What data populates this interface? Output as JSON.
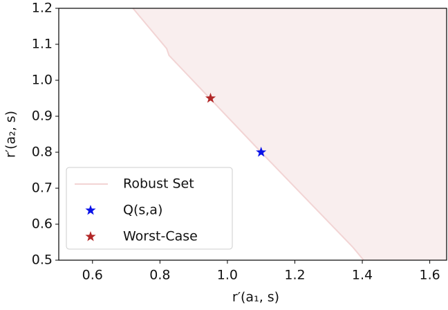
{
  "chart_data": {
    "type": "scatter",
    "xlabel": "r′(a₁, s)",
    "ylabel": "r′(a₂, s)",
    "xlim": [
      0.5,
      1.65
    ],
    "ylim": [
      0.5,
      1.2
    ],
    "xticks": [
      0.6,
      0.8,
      {
        "value": 1.0,
        "label": "1.0"
      },
      1.2,
      1.4,
      1.6
    ],
    "yticks": [
      0.5,
      0.6,
      0.7,
      0.8,
      0.9,
      {
        "value": 1.0,
        "label": "1.0"
      },
      1.1,
      1.2
    ],
    "legend": "lower left",
    "series": [
      {
        "name": "Robust Set",
        "type": "area",
        "color": "#f2d4d4",
        "fill": "#f9eeee",
        "x": [
          0.72,
          0.82,
          0.827,
          1.1,
          1.373,
          1.404
        ],
        "values": [
          1.2,
          1.088,
          1.069,
          0.8,
          0.535,
          0.5
        ]
      },
      {
        "name": "Q(s,a)",
        "type": "scatter",
        "marker": "star",
        "color": "#0a12e8",
        "x": [
          1.1
        ],
        "values": [
          0.8
        ]
      },
      {
        "name": "Worst-Case",
        "type": "scatter",
        "marker": "star",
        "color": "#b22727",
        "x": [
          0.95
        ],
        "values": [
          0.95
        ]
      }
    ]
  }
}
